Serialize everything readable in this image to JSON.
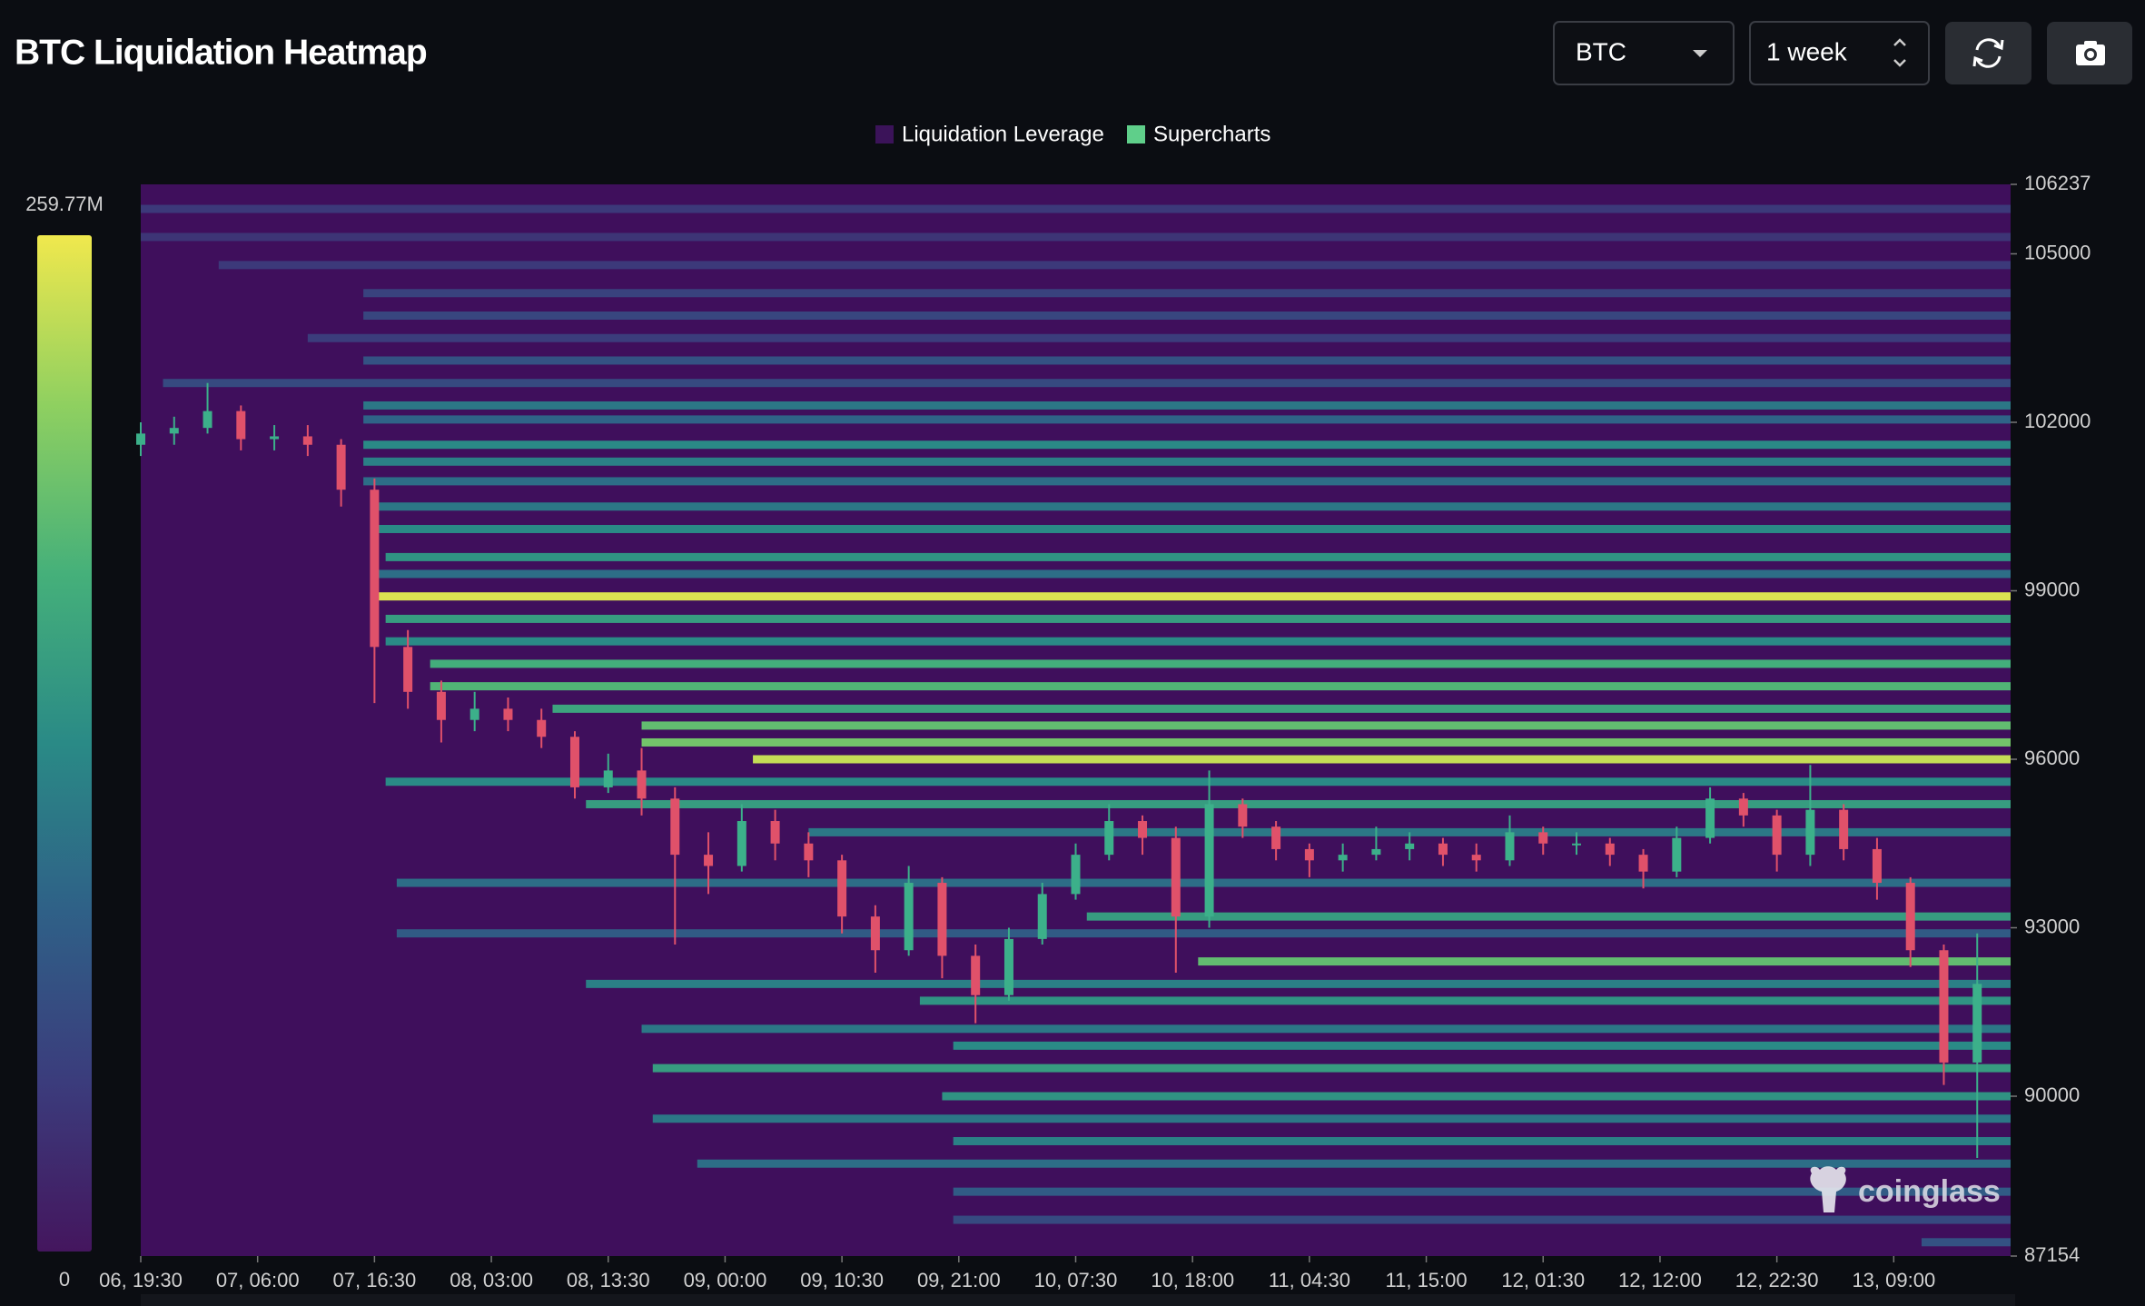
{
  "header": {
    "title": "BTC Liquidation Heatmap",
    "controls": {
      "symbol": "BTC",
      "range": "1 week"
    }
  },
  "chart_data": {
    "type": "heatmap",
    "watermark": "coinglass",
    "background": "#3f0f5c",
    "legend": [
      {
        "name": "Liquidation Leverage",
        "color": "#3b1359"
      },
      {
        "name": "Supercharts",
        "color": "#5fcf8a"
      }
    ],
    "xlim": [
      0,
      168
    ],
    "xticks": [
      {
        "value": 0,
        "label": "06, 19:30"
      },
      {
        "value": 10.5,
        "label": "07, 06:00"
      },
      {
        "value": 21,
        "label": "07, 16:30"
      },
      {
        "value": 31.5,
        "label": "08, 03:00"
      },
      {
        "value": 42,
        "label": "08, 13:30"
      },
      {
        "value": 52.5,
        "label": "09, 00:00"
      },
      {
        "value": 63,
        "label": "09, 10:30"
      },
      {
        "value": 73.5,
        "label": "09, 21:00"
      },
      {
        "value": 84,
        "label": "10, 07:30"
      },
      {
        "value": 94.5,
        "label": "10, 18:00"
      },
      {
        "value": 105,
        "label": "11, 04:30"
      },
      {
        "value": 115.5,
        "label": "11, 15:00"
      },
      {
        "value": 126,
        "label": "12, 01:30"
      },
      {
        "value": 136.5,
        "label": "12, 12:00"
      },
      {
        "value": 147,
        "label": "12, 22:30"
      },
      {
        "value": 157.5,
        "label": "13, 09:00"
      }
    ],
    "ylim": [
      87154,
      106237
    ],
    "yticks": [
      87154,
      90000,
      93000,
      96000,
      99000,
      102000,
      105000,
      106237
    ],
    "colorscale": {
      "colors": [
        "#44165e",
        "#3b3c7c",
        "#2f6087",
        "#2a8a86",
        "#45b07a",
        "#8fd060",
        "#f0e84d"
      ],
      "min": 0,
      "max": {
        "value": 259.77,
        "label": "259.77M"
      }
    },
    "bands": {
      "price": [
        105800,
        105300,
        104800,
        104300,
        103900,
        103500,
        103100,
        102700,
        102300,
        102050,
        101600,
        101300,
        100950,
        100500,
        100100,
        99600,
        99300,
        98900,
        98500,
        98100,
        97700,
        97300,
        96900,
        96600,
        96300,
        96000,
        95600,
        95200,
        94700,
        93800,
        93200,
        92900,
        92400,
        92000,
        91700,
        91200,
        90900,
        90500,
        90000,
        89600,
        89200,
        88800,
        88300,
        87800,
        87400
      ],
      "start": [
        0,
        0,
        7,
        20,
        20,
        15,
        20,
        2,
        20,
        20,
        20,
        20,
        20,
        21,
        21,
        22,
        21,
        21,
        22,
        22,
        26,
        26,
        37,
        45,
        45,
        55,
        22,
        40,
        60,
        23,
        85,
        23,
        95,
        40,
        70,
        45,
        73,
        46,
        72,
        46,
        73,
        50,
        73,
        73,
        160
      ],
      "values": [
        40,
        35,
        40,
        50,
        55,
        45,
        70,
        60,
        110,
        90,
        130,
        120,
        100,
        110,
        130,
        140,
        100,
        250,
        150,
        130,
        170,
        180,
        160,
        190,
        200,
        240,
        130,
        150,
        110,
        100,
        150,
        80,
        190,
        120,
        140,
        110,
        130,
        150,
        140,
        110,
        120,
        100,
        80,
        60,
        70
      ]
    },
    "candles": {
      "up_color": "#3cb08a",
      "down_color": "#e0516a",
      "x": [
        0,
        3,
        6,
        9,
        12,
        15,
        18,
        21,
        24,
        27,
        30,
        33,
        36,
        39,
        42,
        45,
        48,
        51,
        54,
        57,
        60,
        63,
        66,
        69,
        72,
        75,
        78,
        81,
        84,
        87,
        90,
        93,
        96,
        99,
        102,
        105,
        108,
        111,
        114,
        117,
        120,
        123,
        126,
        129,
        132,
        135,
        138,
        141,
        144,
        147,
        150,
        153,
        156,
        159,
        162,
        165
      ],
      "open": [
        101600,
        101800,
        101900,
        102200,
        101700,
        101750,
        101600,
        100800,
        98000,
        97200,
        96700,
        96900,
        96700,
        96400,
        95500,
        95800,
        95300,
        94300,
        94100,
        94900,
        94500,
        94200,
        93200,
        92600,
        93800,
        92500,
        91800,
        92800,
        93600,
        94300,
        94900,
        94600,
        93200,
        95200,
        94800,
        94400,
        94200,
        94300,
        94400,
        94500,
        94300,
        94200,
        94700,
        94500,
        94500,
        94300,
        94000,
        94600,
        95300,
        95000,
        94300,
        95100,
        94400,
        93800,
        92600,
        90600
      ],
      "high": [
        102000,
        102100,
        102700,
        102300,
        101950,
        101950,
        101700,
        101000,
        98300,
        97400,
        97200,
        97100,
        96900,
        96500,
        96100,
        96200,
        95500,
        94700,
        95200,
        95100,
        94700,
        94300,
        93400,
        94100,
        93900,
        92700,
        93000,
        93800,
        94500,
        95200,
        95000,
        94800,
        95800,
        95300,
        94900,
        94500,
        94500,
        94800,
        94700,
        94600,
        94500,
        95000,
        94800,
        94700,
        94600,
        94400,
        94800,
        95500,
        95400,
        95100,
        95900,
        95200,
        94600,
        93900,
        92700,
        92900
      ],
      "low": [
        101400,
        101600,
        101800,
        101500,
        101500,
        101400,
        100500,
        97000,
        96900,
        96300,
        96500,
        96500,
        96200,
        95300,
        95400,
        95000,
        92700,
        93600,
        94000,
        94200,
        93900,
        92900,
        92200,
        92500,
        92100,
        91300,
        91700,
        92700,
        93500,
        94200,
        94300,
        92200,
        93000,
        94600,
        94200,
        93900,
        94000,
        94200,
        94200,
        94100,
        94000,
        94100,
        94300,
        94300,
        94100,
        93700,
        93900,
        94500,
        94800,
        94000,
        94100,
        94200,
        93500,
        92300,
        90200,
        88900
      ],
      "close": [
        101800,
        101900,
        102200,
        101700,
        101750,
        101600,
        100800,
        98000,
        97200,
        96700,
        96900,
        96700,
        96400,
        95500,
        95800,
        95300,
        94300,
        94100,
        94900,
        94500,
        94200,
        93200,
        92600,
        93800,
        92500,
        91800,
        92800,
        93600,
        94300,
        94900,
        94600,
        93200,
        95200,
        94800,
        94400,
        94200,
        94300,
        94400,
        94500,
        94300,
        94200,
        94700,
        94500,
        94500,
        94300,
        94000,
        94600,
        95300,
        95000,
        94300,
        95100,
        94400,
        93800,
        92600,
        90600,
        92000
      ]
    }
  }
}
